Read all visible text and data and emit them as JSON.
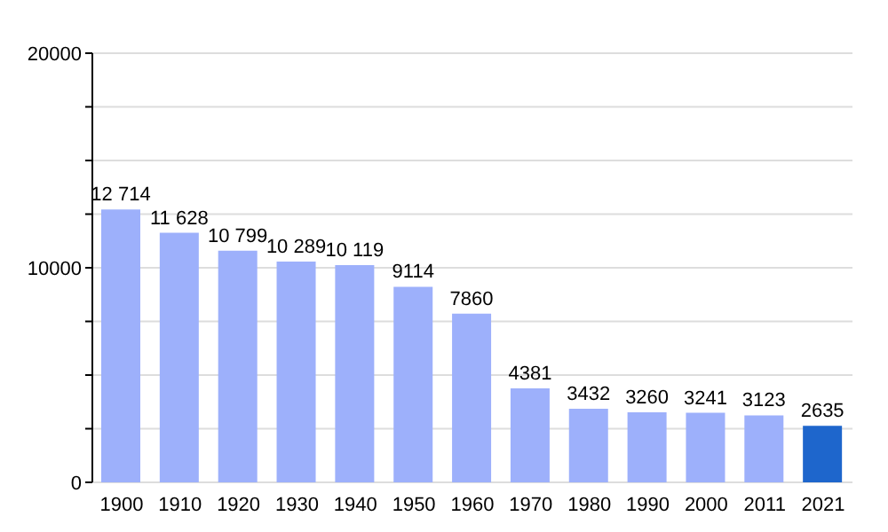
{
  "chart_data": {
    "type": "bar",
    "categories": [
      "1900",
      "1910",
      "1920",
      "1930",
      "1940",
      "1950",
      "1960",
      "1970",
      "1980",
      "1990",
      "2000",
      "2011",
      "2021"
    ],
    "values": [
      12714,
      11628,
      10799,
      10289,
      10119,
      9114,
      7860,
      4381,
      3432,
      3260,
      3241,
      3123,
      2635
    ],
    "value_labels": [
      "12 714",
      "11 628",
      "10 799",
      "10 289",
      "10 119",
      "9114",
      "7860",
      "4381",
      "3432",
      "3260",
      "3241",
      "3123",
      "2635"
    ],
    "colors": [
      "#9db0fb",
      "#9db0fb",
      "#9db0fb",
      "#9db0fb",
      "#9db0fb",
      "#9db0fb",
      "#9db0fb",
      "#9db0fb",
      "#9db0fb",
      "#9db0fb",
      "#9db0fb",
      "#9db0fb",
      "#1e66cc"
    ],
    "ylim": [
      0,
      20000
    ],
    "yticks": [
      0,
      {
        "value": 2500,
        "label": null
      },
      {
        "value": 5000,
        "label": null
      },
      {
        "value": 7500,
        "label": null
      },
      10000,
      {
        "value": 12500,
        "label": null
      },
      {
        "value": 15000,
        "label": null
      },
      {
        "value": 17500,
        "label": null
      },
      20000
    ],
    "grid": "y"
  }
}
